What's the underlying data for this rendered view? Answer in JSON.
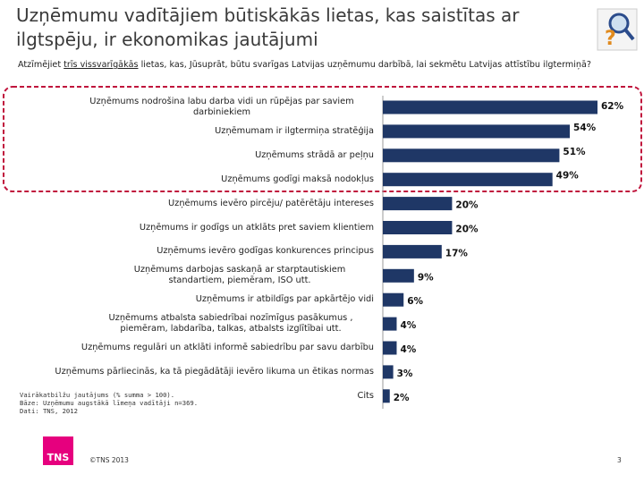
{
  "title": "Uzņēmumu vadītājiem būtiskākās lietas, kas saistītas ar ilgtspēju, ir ekonomikas jautājumi",
  "question": [
    "Atzīmējiet",
    "trīs vissvarīgākās",
    "lietas, kas, Jūsuprāt, būtu svarīgas Latvijas uzņēmumu darbībā, lai sekmētu Latvijas attīstību ilgtermiņā?"
  ],
  "chart_data": {
    "type": "bar",
    "orientation": "horizontal",
    "color": "#1f3766",
    "categories": [
      "Uzņēmums nodrošina labu darba vidi un rūpējas par saviem darbiniekiem",
      "Uzņēmumam ir ilgtermiņa stratēģija",
      "Uzņēmums strādā ar peļņu",
      "Uzņēmums godīgi maksā nodokļus",
      "Uzņēmums ievēro pircēju/ patērētāju intereses",
      "Uzņēmums ir godīgs un atklāts pret saviem klientiem",
      "Uzņēmums ievēro godīgas konkurences principus",
      "Uzņēmums darbojas saskaņā ar starptautiskiem standartiem, piemēram, ISO utt.",
      "Uzņēmums ir atbildīgs par apkārtējo vidi",
      "Uzņēmums atbalsta sabiedrībai nozīmīgus pasākumus , piemēram, labdarība, talkas, atbalsts izglītībai utt.",
      "Uzņēmums regulāri un atklāti informē sabiedrību par savu darbību",
      "Uzņēmums pārliecinās, ka tā piegādātāji ievēro likuma un ētikas normas",
      "Cits"
    ],
    "values": [
      62,
      54,
      51,
      49,
      20,
      20,
      17,
      9,
      6,
      4,
      4,
      3,
      2
    ],
    "value_labels": [
      "62%",
      "54%",
      "51%",
      "49%",
      "20%",
      "20%",
      "17%",
      "9%",
      "6%",
      "4%",
      "4%",
      "3%",
      "2%"
    ]
  },
  "notes": [
    "Vairākatbilžu jautājums (% summa > 100).",
    "Bāze: Uzņēmumu augstākā līmeņa vadītāji n=369.",
    "Dati: TNS, 2012"
  ],
  "footer": {
    "logo": "TNS",
    "copyright": "©TNS 2013",
    "page": "3"
  }
}
